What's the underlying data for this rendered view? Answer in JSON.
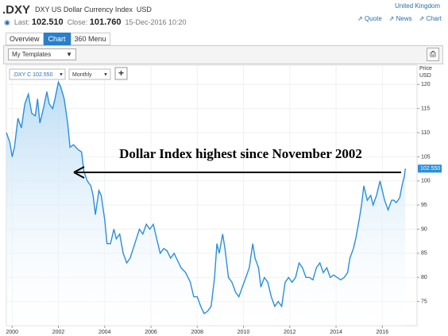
{
  "header": {
    "symbol": ".DXY",
    "name": "DXY US Dollar Currency Index",
    "currency": "USD",
    "region": "United Kingdom",
    "last_label": "Last:",
    "last": "102.510",
    "close_label": "Close:",
    "close": "101.760",
    "timestamp": "15-Dec-2016 10:20",
    "links": [
      "Quote",
      "News",
      "Chart"
    ]
  },
  "tabs": [
    "Overview",
    "Chart",
    "360 Menu"
  ],
  "toolbar": {
    "templates": "My Templates",
    "instrument": ".DXY C 102.550",
    "interval": "Monthly"
  },
  "chart_data": {
    "type": "line",
    "annotation": "Dollar Index highest since November 2002",
    "axis_label": "Price",
    "unit": "USD",
    "color": "#2b8fd8",
    "fill": true,
    "grid": true,
    "current": {
      "value": 102.55,
      "label": "102.550"
    },
    "x": [
      1999.75,
      1999.9,
      2000.0,
      2000.1,
      2000.25,
      2000.4,
      2000.55,
      2000.7,
      2000.85,
      2001.0,
      2001.1,
      2001.2,
      2001.35,
      2001.5,
      2001.6,
      2001.75,
      2001.85,
      2002.0,
      2002.1,
      2002.25,
      2002.4,
      2002.5,
      2002.65,
      2002.85,
      2003.0,
      2003.1,
      2003.25,
      2003.4,
      2003.5,
      2003.6,
      2003.75,
      2003.85,
      2004.0,
      2004.1,
      2004.25,
      2004.4,
      2004.5,
      2004.65,
      2004.8,
      2004.95,
      2005.1,
      2005.3,
      2005.5,
      2005.65,
      2005.8,
      2005.95,
      2006.1,
      2006.25,
      2006.4,
      2006.55,
      2006.7,
      2006.85,
      2007.0,
      2007.15,
      2007.3,
      2007.5,
      2007.7,
      2007.85,
      2008.0,
      2008.15,
      2008.3,
      2008.45,
      2008.6,
      2008.75,
      2008.85,
      2008.95,
      2009.1,
      2009.2,
      2009.35,
      2009.5,
      2009.65,
      2009.8,
      2009.95,
      2010.1,
      2010.25,
      2010.4,
      2010.5,
      2010.65,
      2010.75,
      2010.9,
      2011.05,
      2011.2,
      2011.35,
      2011.5,
      2011.65,
      2011.8,
      2011.95,
      2012.1,
      2012.25,
      2012.4,
      2012.55,
      2012.7,
      2012.85,
      2013.0,
      2013.15,
      2013.3,
      2013.45,
      2013.6,
      2013.75,
      2013.9,
      2014.05,
      2014.2,
      2014.35,
      2014.5,
      2014.6,
      2014.75,
      2014.85,
      2015.0,
      2015.1,
      2015.2,
      2015.35,
      2015.5,
      2015.6,
      2015.75,
      2015.9,
      2016.0,
      2016.1,
      2016.25,
      2016.4,
      2016.5,
      2016.6,
      2016.75,
      2016.85,
      2016.95,
      2017.0
    ],
    "values": [
      110,
      108,
      105,
      107,
      113,
      111,
      116,
      118,
      114,
      113.5,
      117,
      112,
      115,
      118.5,
      116,
      115,
      117,
      120.5,
      119.5,
      117,
      112,
      107,
      107.5,
      106.5,
      106,
      102,
      100,
      99,
      97,
      93,
      98,
      97,
      92,
      87,
      87,
      90,
      88,
      89,
      85,
      83,
      84,
      87,
      90,
      89,
      91,
      90,
      91,
      88,
      85,
      86,
      85.5,
      84,
      85,
      83.5,
      82,
      81,
      79,
      76,
      76,
      74,
      72.5,
      73,
      74,
      80,
      87,
      85,
      89,
      86,
      80,
      79,
      77,
      76,
      78,
      80,
      82,
      87,
      84,
      82,
      78,
      80,
      79,
      76,
      74,
      75,
      74,
      79,
      80,
      79,
      80,
      83,
      82,
      80,
      80,
      79.5,
      82,
      83,
      81,
      82,
      80,
      80.5,
      80,
      79.5,
      80,
      81,
      84,
      86,
      88,
      92,
      95,
      99,
      96,
      97,
      95,
      97,
      100,
      98,
      96,
      94,
      96,
      96,
      95.5,
      96.5,
      99,
      101,
      102.55
    ],
    "xlim": [
      1999.75,
      2017.5
    ],
    "ylim": [
      70,
      124
    ],
    "xticks": [
      2000,
      2002,
      2004,
      2006,
      2008,
      2010,
      2012,
      2014,
      2016
    ],
    "yticks": [
      75,
      80,
      85,
      90,
      95,
      100,
      105,
      110,
      115,
      120
    ]
  }
}
